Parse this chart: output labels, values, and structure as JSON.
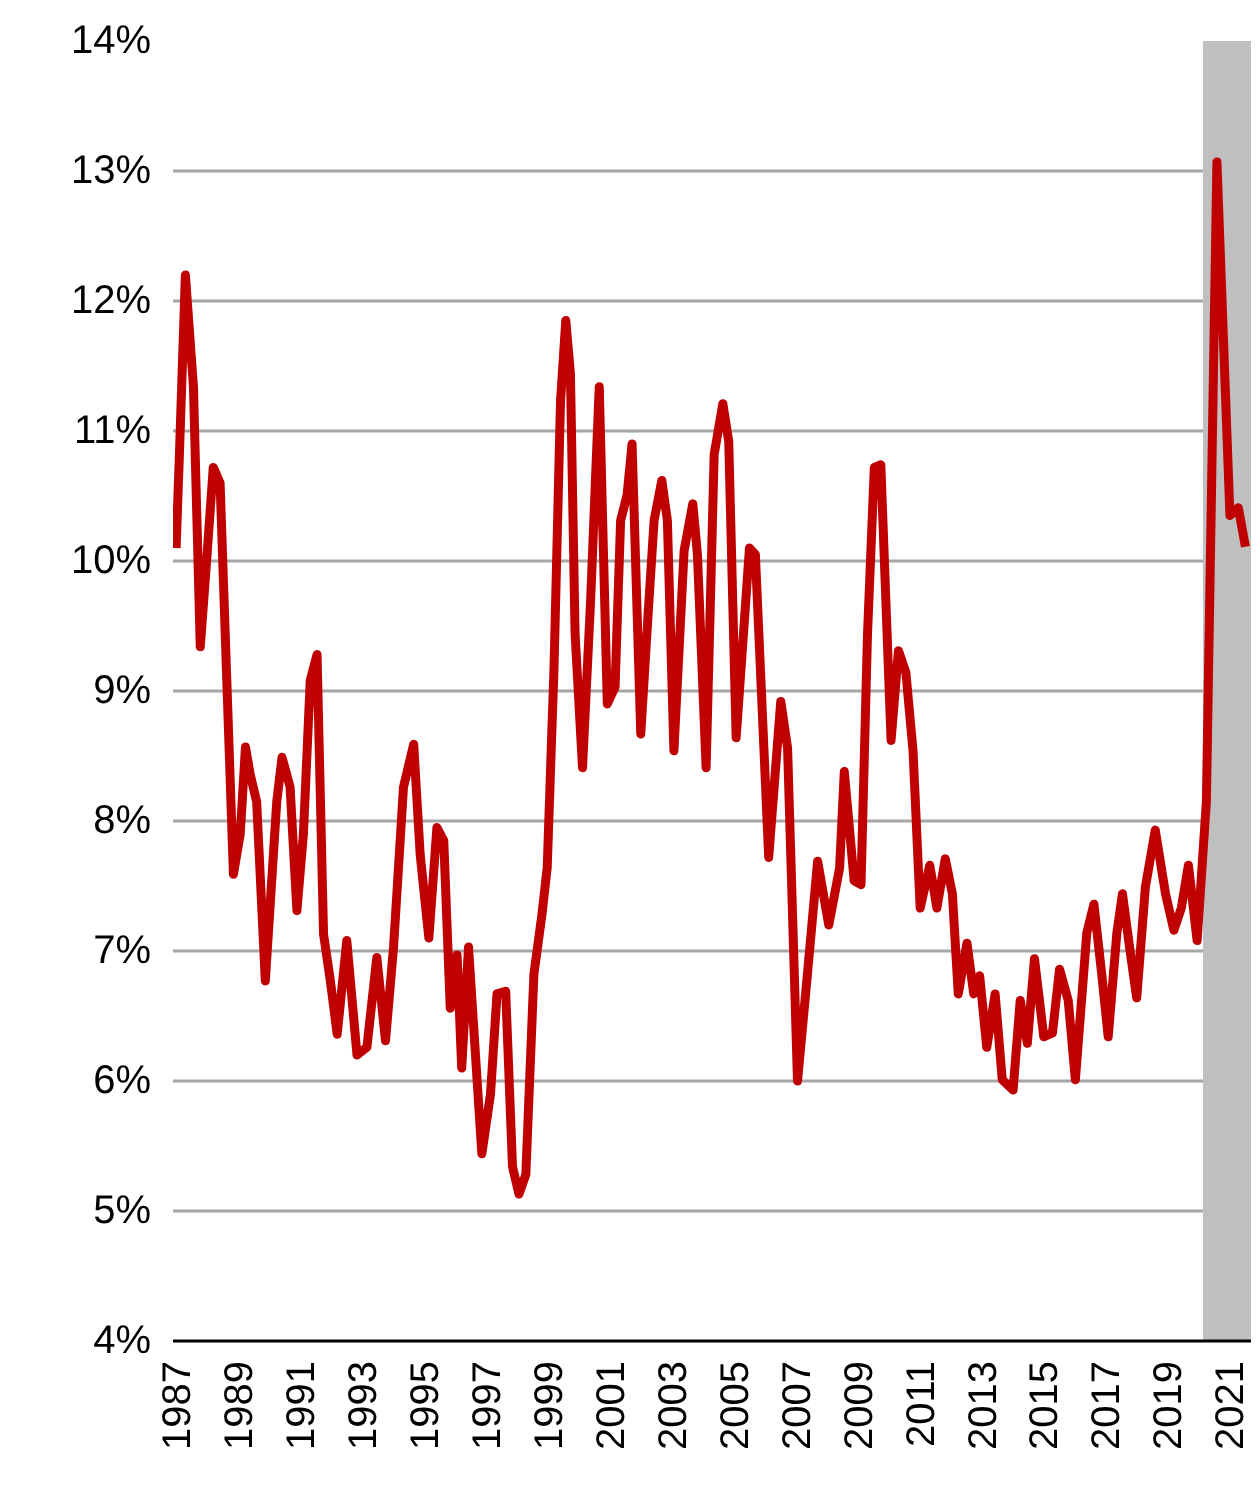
{
  "chart_data": {
    "type": "line",
    "xlim": [
      1986.9,
      2021.7
    ],
    "ylim": [
      4,
      14
    ],
    "xticks": [
      1987,
      1989,
      1991,
      1993,
      1995,
      1997,
      1999,
      2001,
      2003,
      2005,
      2007,
      2009,
      2011,
      2013,
      2015,
      2017,
      2019,
      2021
    ],
    "yticks": [
      {
        "value": 4,
        "label": "4%"
      },
      {
        "value": 5,
        "label": "5%"
      },
      {
        "value": 6,
        "label": "6%"
      },
      {
        "value": 7,
        "label": "7%"
      },
      {
        "value": 8,
        "label": "8%"
      },
      {
        "value": 9,
        "label": "9%"
      },
      {
        "value": 10,
        "label": "10%"
      },
      {
        "value": 11,
        "label": "11%"
      },
      {
        "value": 12,
        "label": "12%"
      },
      {
        "value": 13,
        "label": "13%"
      },
      {
        "value": 14,
        "label": "14%"
      }
    ],
    "grid": "y",
    "line_style": "solid",
    "bands": [
      {
        "axis": "x",
        "from": 2020.15,
        "to": 2021.7,
        "color": "#bfbfbf"
      }
    ],
    "series": [
      {
        "color": "#c00000",
        "x": [
          1987.0,
          1987.1,
          1987.3,
          1987.56,
          1987.78,
          1988.0,
          1988.2,
          1988.42,
          1988.85,
          1989.07,
          1989.24,
          1989.39,
          1989.6,
          1989.88,
          1990.25,
          1990.42,
          1990.68,
          1990.9,
          1991.11,
          1991.33,
          1991.55,
          1991.76,
          1991.98,
          1992.2,
          1992.51,
          1992.84,
          1993.16,
          1993.48,
          1993.76,
          1994.02,
          1994.34,
          1994.67,
          1994.88,
          1995.16,
          1995.42,
          1995.64,
          1995.85,
          1996.07,
          1996.22,
          1996.44,
          1996.87,
          1997.15,
          1997.36,
          1997.64,
          1997.86,
          1998.07,
          1998.29,
          1998.55,
          1998.81,
          1998.98,
          1999.2,
          1999.41,
          1999.58,
          1999.73,
          1999.88,
          2000.12,
          2000.38,
          2000.66,
          2000.92,
          2001.17,
          2001.35,
          2001.56,
          2001.72,
          2002.0,
          2002.25,
          2002.43,
          2002.68,
          2002.86,
          2003.07,
          2003.4,
          2003.68,
          2003.83,
          2004.11,
          2004.37,
          2004.65,
          2004.84,
          2005.08,
          2005.51,
          2005.7,
          2006.13,
          2006.52,
          2006.74,
          2007.06,
          2007.38,
          2007.71,
          2008.07,
          2008.42,
          2008.57,
          2008.89,
          2009.11,
          2009.32,
          2009.54,
          2009.75,
          2010.08,
          2010.32,
          2010.56,
          2010.79,
          2011.02,
          2011.33,
          2011.56,
          2011.83,
          2012.06,
          2012.25,
          2012.53,
          2012.75,
          2012.94,
          2013.17,
          2013.44,
          2013.67,
          2014.02,
          2014.25,
          2014.48,
          2014.71,
          2015.01,
          2015.29,
          2015.52,
          2015.8,
          2016.03,
          2016.4,
          2016.63,
          2016.9,
          2017.09,
          2017.37,
          2017.55,
          2017.78,
          2018.01,
          2018.29,
          2018.61,
          2018.94,
          2019.21,
          2019.45,
          2019.68,
          2019.96,
          2020.26,
          2020.6,
          2021.02,
          2021.29,
          2021.52
        ],
        "values": [
          10.1,
          10.77,
          12.2,
          11.34,
          9.34,
          10.05,
          10.72,
          10.6,
          7.59,
          7.9,
          8.57,
          8.36,
          8.15,
          6.77,
          8.15,
          8.49,
          8.26,
          7.31,
          7.9,
          9.08,
          9.28,
          7.13,
          6.77,
          6.36,
          7.08,
          6.2,
          6.26,
          6.95,
          6.31,
          7.03,
          8.26,
          8.59,
          7.74,
          7.1,
          7.95,
          7.85,
          6.56,
          6.97,
          6.1,
          7.03,
          5.44,
          5.9,
          6.67,
          6.69,
          5.34,
          5.13,
          5.28,
          6.82,
          7.28,
          7.64,
          9.18,
          11.23,
          11.85,
          11.44,
          9.44,
          8.41,
          9.69,
          11.34,
          8.9,
          9.03,
          10.31,
          10.51,
          10.9,
          8.67,
          9.64,
          10.31,
          10.62,
          10.31,
          8.54,
          10.08,
          10.44,
          10.05,
          8.41,
          10.82,
          11.21,
          10.92,
          8.64,
          10.1,
          10.05,
          7.72,
          8.92,
          8.56,
          6.0,
          6.82,
          7.69,
          7.2,
          7.64,
          8.38,
          7.54,
          7.51,
          9.44,
          10.72,
          10.74,
          8.62,
          9.31,
          9.14,
          8.54,
          7.33,
          7.66,
          7.33,
          7.71,
          7.44,
          6.67,
          7.06,
          6.67,
          6.81,
          6.26,
          6.67,
          6.01,
          5.93,
          6.62,
          6.29,
          6.94,
          6.34,
          6.37,
          6.86,
          6.62,
          6.01,
          7.14,
          7.36,
          6.78,
          6.34,
          7.14,
          7.44,
          7.03,
          6.64,
          7.49,
          7.93,
          7.44,
          7.16,
          7.33,
          7.66,
          7.08,
          8.15,
          13.07,
          10.35,
          10.41,
          10.11
        ]
      }
    ]
  }
}
